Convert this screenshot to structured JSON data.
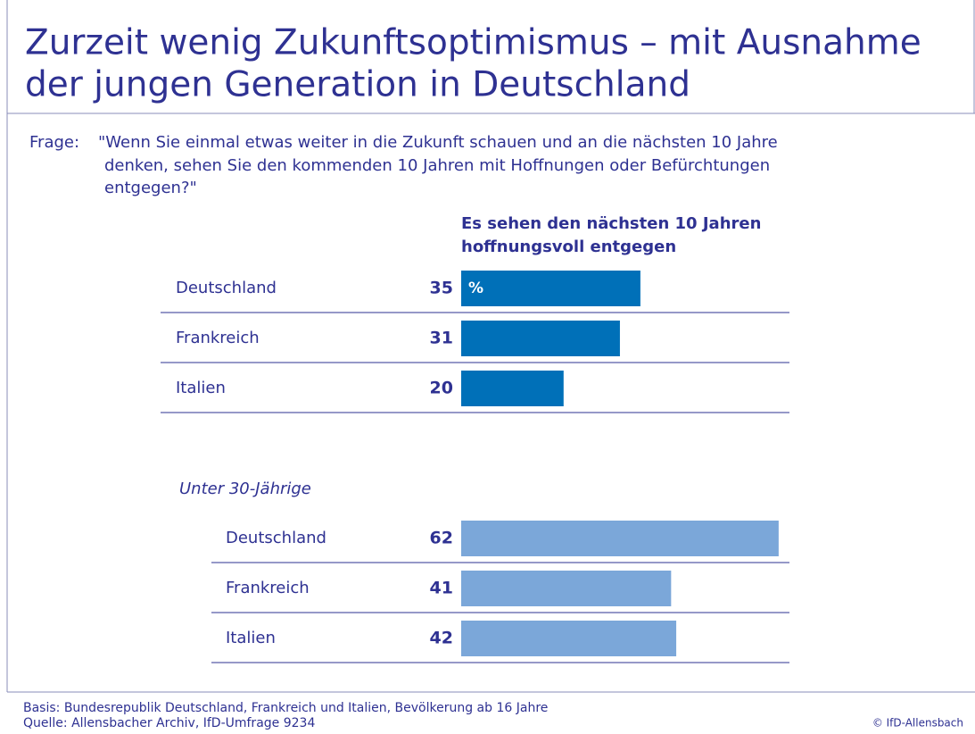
{
  "chart_data": {
    "type": "bar",
    "title": [
      "Zurzeit wenig Zukunftsoptimismus – mit Ausnahme",
      "der jungen Generation in Deutschland"
    ],
    "question_label": "Frage:",
    "question": [
      "\"Wenn Sie einmal etwas weiter in die Zukunft schauen und an die nächsten 10 Jahre",
      "denken, sehen Sie den kommenden 10 Jahren mit Hoffnungen oder Befürchtungen",
      "entgegen?\""
    ],
    "heading": [
      "Es sehen den nächsten 10 Jahren",
      "hoffnungsvoll entgegen"
    ],
    "unit": "%",
    "groups": [
      {
        "categories": [
          "Deutschland",
          "Frankreich",
          "Italien"
        ],
        "values": [
          35,
          31,
          20
        ],
        "color": "#0070b8"
      },
      {
        "name": "Unter 30-Jährige",
        "categories": [
          "Deutschland",
          "Frankreich",
          "Italien"
        ],
        "values": [
          62,
          41,
          42
        ],
        "color": "#7ba7d9"
      }
    ],
    "footer": [
      "Basis: Bundesrepublik Deutschland, Frankreich und Italien, Bevölkerung ab 16 Jahre",
      "Quelle: Allensbacher Archiv, IfD-Umfrage 9234"
    ],
    "copyright": "© IfD-Allensbach"
  }
}
